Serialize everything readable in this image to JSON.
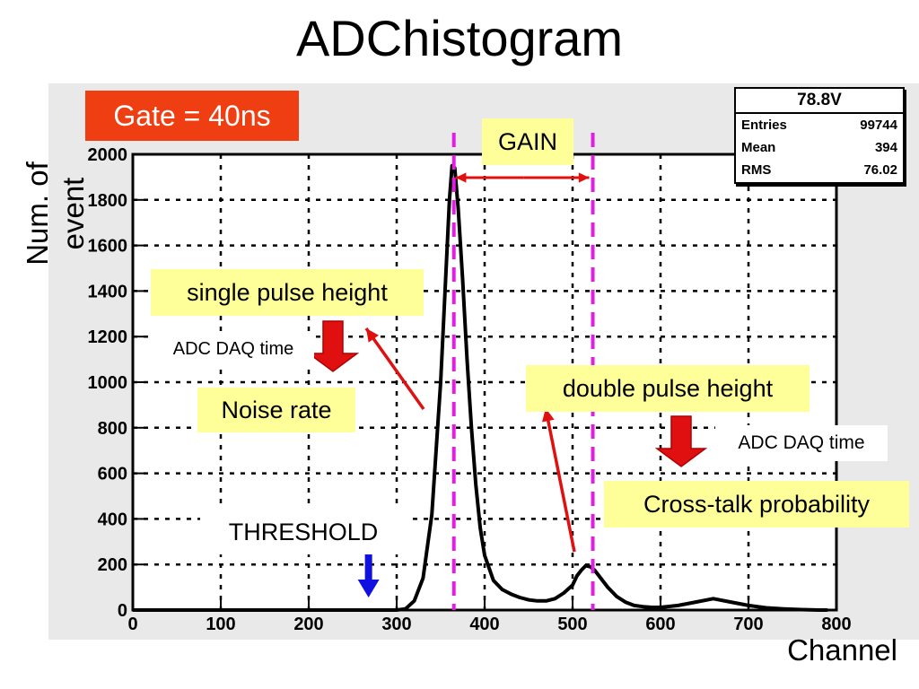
{
  "page_title": "ADChistogram",
  "axes": {
    "ylabel": "Num. of event",
    "xlabel": "Channel"
  },
  "gate_label": "Gate = 40ns",
  "stats_box": {
    "title": "78.8V",
    "rows": [
      {
        "label": "Entries",
        "value": "99744"
      },
      {
        "label": "Mean",
        "value": "394"
      },
      {
        "label": "RMS",
        "value": "76.02"
      }
    ]
  },
  "annotations": {
    "gain": "GAIN",
    "single_pulse": "single pulse height",
    "adc_daq_1": "ADC DAQ time",
    "noise_rate": "Noise rate",
    "double_pulse": "double pulse height",
    "adc_daq_2": "ADC DAQ time",
    "crosstalk": "Cross-talk probability",
    "threshold": "THRESHOLD"
  },
  "colors": {
    "histogram": "#000000",
    "dashed_lines": "#e020e0",
    "red_arrows": "#e01010",
    "threshold_arrow": "#1010e0",
    "gate_box": "#ef3e12",
    "annotation_bg": "#ffff99"
  },
  "chart_data": {
    "type": "line",
    "title": "",
    "xlabel": "Channel",
    "ylabel": "Num. of event",
    "xlim": [
      0,
      800
    ],
    "ylim": [
      0,
      2000
    ],
    "x_ticks": [
      0,
      100,
      200,
      300,
      400,
      500,
      600,
      700,
      800
    ],
    "y_ticks": [
      0,
      200,
      400,
      600,
      800,
      1000,
      1200,
      1400,
      1600,
      1800,
      2000
    ],
    "grid": true,
    "markers": {
      "single_peak_channel": 365,
      "double_peak_channel": 523
    },
    "threshold_channel": 268,
    "series": [
      {
        "x": [
          0,
          300,
          310,
          320,
          330,
          340,
          350,
          355,
          360,
          363,
          366,
          370,
          375,
          380,
          385,
          390,
          395,
          400,
          410,
          420,
          430,
          440,
          450,
          460,
          470,
          480,
          490,
          500,
          505,
          510,
          515,
          520,
          525,
          530,
          540,
          550,
          560,
          570,
          580,
          590,
          600,
          620,
          640,
          660,
          680,
          700,
          720,
          740,
          760,
          780,
          790
        ],
        "y": [
          0,
          0,
          5,
          40,
          140,
          420,
          1000,
          1400,
          1800,
          1950,
          1940,
          1760,
          1450,
          1100,
          800,
          550,
          360,
          240,
          130,
          90,
          70,
          55,
          45,
          40,
          40,
          50,
          75,
          110,
          150,
          175,
          195,
          190,
          175,
          150,
          100,
          60,
          35,
          20,
          15,
          12,
          12,
          20,
          35,
          50,
          35,
          20,
          10,
          5,
          2,
          0,
          0
        ]
      }
    ]
  }
}
